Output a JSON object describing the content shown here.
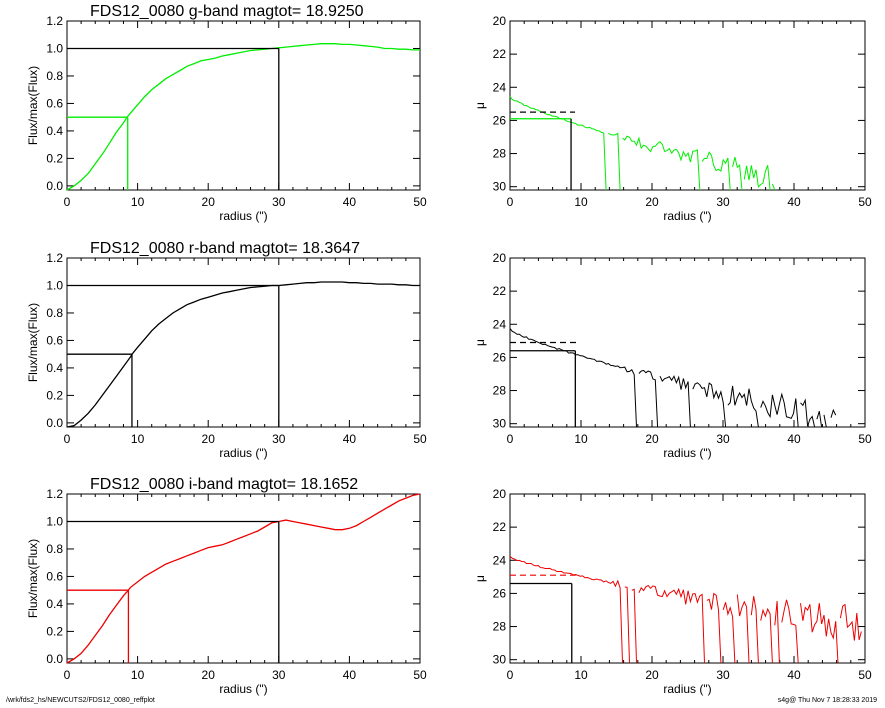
{
  "footer": {
    "path": "/wrk/fds2_hs/NEWCUTS2/FDS12_0080_reffplot",
    "stamp": "s4g@  Thu Nov  7 18:28:33 2019"
  },
  "chart_data": [
    {
      "panel": "growth-curve-g",
      "type": "line",
      "title": "FDS12_0080 g-band  magtot=     18.9250",
      "xlabel": "radius (\")",
      "ylabel": "Flux/max(Flux)",
      "xlim": [
        0,
        50
      ],
      "ylim": [
        -0.03,
        1.2
      ],
      "xticks": [
        0,
        10,
        20,
        30,
        40,
        50
      ],
      "yticks": [
        0.0,
        0.2,
        0.4,
        0.6,
        0.8,
        1.0,
        1.2
      ],
      "ytick_labels": [
        "0.0",
        "0.2",
        "0.4",
        "0.6",
        "0.8",
        "1.0",
        "1.2"
      ],
      "color": "#00ee00",
      "series": [
        {
          "x": [
            0,
            1,
            2,
            3,
            4,
            5,
            6,
            7,
            8,
            8.5,
            9,
            10,
            11,
            12,
            13,
            14,
            15,
            16,
            17,
            18,
            19,
            20,
            21,
            22,
            23,
            24,
            25,
            26,
            27,
            28,
            29,
            30,
            31,
            32,
            33,
            34,
            35,
            36,
            37,
            38,
            39,
            40,
            41,
            42,
            43,
            44,
            45,
            46,
            47,
            48,
            49,
            50
          ],
          "y": [
            -0.03,
            0.0,
            0.04,
            0.09,
            0.16,
            0.23,
            0.31,
            0.39,
            0.46,
            0.5,
            0.53,
            0.59,
            0.65,
            0.7,
            0.74,
            0.78,
            0.81,
            0.84,
            0.87,
            0.89,
            0.91,
            0.92,
            0.93,
            0.945,
            0.955,
            0.965,
            0.975,
            0.985,
            0.99,
            0.995,
            1.0,
            1.005,
            1.01,
            1.015,
            1.02,
            1.025,
            1.03,
            1.035,
            1.035,
            1.035,
            1.03,
            1.03,
            1.025,
            1.02,
            1.015,
            1.01,
            1.0,
            1.0,
            0.995,
            0.995,
            0.99,
            0.99
          ]
        }
      ],
      "markers": {
        "half_light": {
          "x": 8.6,
          "y": 0.5,
          "color": "#00ee00"
        },
        "total": {
          "x": 30,
          "y": 1.0,
          "color": "#000000"
        }
      }
    },
    {
      "panel": "surface-brightness-g",
      "type": "line",
      "title": "",
      "xlabel": "radius (\")",
      "ylabel": "μ",
      "xlim": [
        0,
        50
      ],
      "ylim": [
        30.2,
        20
      ],
      "xticks": [
        0,
        10,
        20,
        30,
        40,
        50
      ],
      "yticks": [
        20,
        22,
        24,
        26,
        28,
        30
      ],
      "ytick_labels": [
        "20",
        "22",
        "24",
        "26",
        "28",
        "30"
      ],
      "color": "#00ee00",
      "profile_extent": {
        "x_start": 0,
        "x_end": 37.5,
        "mu_start": 24.6,
        "mu_end": 29.5,
        "noise_start": 13
      },
      "markers": {
        "effective": {
          "x": 8.6,
          "mu": 25.9,
          "color": "#00ee00"
        },
        "mean_effective": {
          "x": 8.6,
          "mu": 25.5,
          "color": "#000000"
        }
      }
    },
    {
      "panel": "growth-curve-r",
      "type": "line",
      "title": "FDS12_0080 r-band  magtot=     18.3647",
      "xlabel": "radius (\")",
      "ylabel": "Flux/max(Flux)",
      "xlim": [
        0,
        50
      ],
      "ylim": [
        -0.03,
        1.2
      ],
      "xticks": [
        0,
        10,
        20,
        30,
        40,
        50
      ],
      "yticks": [
        0.0,
        0.2,
        0.4,
        0.6,
        0.8,
        1.0,
        1.2
      ],
      "ytick_labels": [
        "0.0",
        "0.2",
        "0.4",
        "0.6",
        "0.8",
        "1.0",
        "1.2"
      ],
      "color": "#000000",
      "series": [
        {
          "x": [
            0,
            1,
            2,
            3,
            4,
            5,
            6,
            7,
            8,
            9,
            9.2,
            10,
            11,
            12,
            13,
            14,
            15,
            16,
            17,
            18,
            19,
            20,
            21,
            22,
            23,
            24,
            25,
            26,
            27,
            28,
            29,
            30,
            31,
            32,
            33,
            34,
            35,
            36,
            37,
            38,
            39,
            40,
            41,
            42,
            43,
            44,
            45,
            46,
            47,
            48,
            49,
            50
          ],
          "y": [
            -0.03,
            -0.02,
            0.02,
            0.07,
            0.13,
            0.2,
            0.27,
            0.34,
            0.41,
            0.48,
            0.5,
            0.55,
            0.61,
            0.67,
            0.72,
            0.76,
            0.8,
            0.83,
            0.86,
            0.88,
            0.9,
            0.915,
            0.93,
            0.945,
            0.955,
            0.965,
            0.975,
            0.985,
            0.99,
            0.995,
            1.0,
            1.0,
            1.005,
            1.01,
            1.015,
            1.02,
            1.02,
            1.025,
            1.025,
            1.025,
            1.025,
            1.02,
            1.02,
            1.015,
            1.015,
            1.01,
            1.01,
            1.01,
            1.005,
            1.005,
            1.0,
            1.0
          ]
        }
      ],
      "markers": {
        "half_light": {
          "x": 9.2,
          "y": 0.5,
          "color": "#000000"
        },
        "total": {
          "x": 30,
          "y": 1.0,
          "color": "#000000"
        }
      }
    },
    {
      "panel": "surface-brightness-r",
      "type": "line",
      "title": "",
      "xlabel": "radius (\")",
      "ylabel": "μ",
      "xlim": [
        0,
        50
      ],
      "ylim": [
        30.2,
        20
      ],
      "xticks": [
        0,
        10,
        20,
        30,
        40,
        50
      ],
      "yticks": [
        20,
        22,
        24,
        26,
        28,
        30
      ],
      "ytick_labels": [
        "20",
        "22",
        "24",
        "26",
        "28",
        "30"
      ],
      "color": "#000000",
      "profile_extent": {
        "x_start": 0,
        "x_end": 46,
        "mu_start": 24.3,
        "mu_end": 29.8,
        "noise_start": 16
      },
      "markers": {
        "effective": {
          "x": 9.2,
          "mu": 25.6,
          "color": "#000000"
        },
        "mean_effective": {
          "x": 9.2,
          "mu": 25.1,
          "color": "#000000"
        }
      }
    },
    {
      "panel": "growth-curve-i",
      "type": "line",
      "title": "FDS12_0080 i-band  magtot=     18.1652",
      "xlabel": "radius (\")",
      "ylabel": "Flux/max(Flux)",
      "xlim": [
        0,
        50
      ],
      "ylim": [
        -0.03,
        1.2
      ],
      "xticks": [
        0,
        10,
        20,
        30,
        40,
        50
      ],
      "yticks": [
        0.0,
        0.2,
        0.4,
        0.6,
        0.8,
        1.0,
        1.2
      ],
      "ytick_labels": [
        "0.0",
        "0.2",
        "0.4",
        "0.6",
        "0.8",
        "1.0",
        "1.2"
      ],
      "color": "#ee0000",
      "series": [
        {
          "x": [
            0,
            1,
            2,
            3,
            4,
            5,
            6,
            7,
            8,
            8.7,
            9,
            10,
            11,
            12,
            13,
            14,
            15,
            16,
            17,
            18,
            19,
            20,
            21,
            22,
            23,
            24,
            25,
            26,
            27,
            28,
            29,
            30,
            31,
            32,
            33,
            34,
            35,
            36,
            37,
            38,
            39,
            40,
            41,
            42,
            43,
            44,
            45,
            46,
            47,
            48,
            49,
            50
          ],
          "y": [
            -0.03,
            0.0,
            0.04,
            0.1,
            0.17,
            0.24,
            0.32,
            0.39,
            0.46,
            0.5,
            0.52,
            0.56,
            0.6,
            0.63,
            0.66,
            0.69,
            0.71,
            0.73,
            0.75,
            0.77,
            0.79,
            0.81,
            0.82,
            0.83,
            0.85,
            0.87,
            0.89,
            0.91,
            0.93,
            0.96,
            0.99,
            1.0,
            1.01,
            1.0,
            0.99,
            0.98,
            0.97,
            0.96,
            0.95,
            0.94,
            0.94,
            0.95,
            0.97,
            1.0,
            1.03,
            1.06,
            1.09,
            1.12,
            1.15,
            1.17,
            1.19,
            1.2
          ]
        }
      ],
      "markers": {
        "half_light": {
          "x": 8.7,
          "y": 0.5,
          "color": "#ee0000"
        },
        "total": {
          "x": 30,
          "y": 1.0,
          "color": "#000000"
        }
      }
    },
    {
      "panel": "surface-brightness-i",
      "type": "line",
      "title": "",
      "xlabel": "radius (\")",
      "ylabel": "μ",
      "xlim": [
        0,
        50
      ],
      "ylim": [
        30.2,
        20
      ],
      "xticks": [
        0,
        10,
        20,
        30,
        40,
        50
      ],
      "yticks": [
        20,
        22,
        24,
        26,
        28,
        30
      ],
      "ytick_labels": [
        "20",
        "22",
        "24",
        "26",
        "28",
        "30"
      ],
      "color": "#ee0000",
      "profile_extent": {
        "x_start": 0,
        "x_end": 49.5,
        "mu_start": 23.8,
        "mu_end": 28.0,
        "noise_start": 14
      },
      "markers": {
        "effective": {
          "x": 8.7,
          "mu": 25.4,
          "color": "#000000"
        },
        "mean_effective": {
          "x": 8.7,
          "mu": 24.9,
          "color": "#ee0000"
        }
      }
    }
  ]
}
